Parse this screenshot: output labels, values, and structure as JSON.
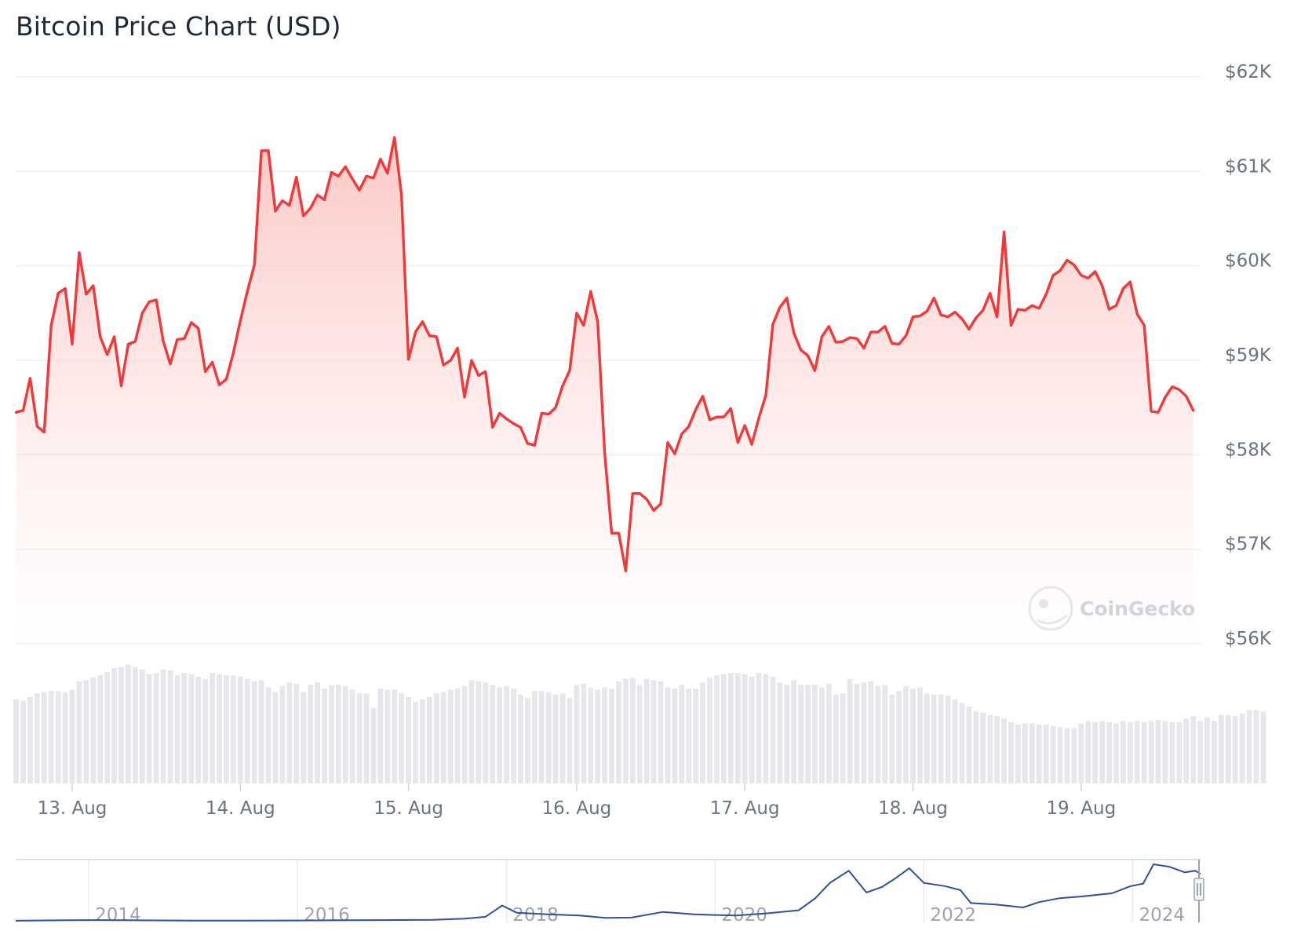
{
  "title": "Bitcoin Price Chart (USD)",
  "watermark": "CoinGecko",
  "colors": {
    "price_line": "#f23838",
    "area_top": "#fbc5c2",
    "volume_bar": "#e5e7eb",
    "grid": "#eef0f3",
    "navigator_line": "#2f4fa2",
    "navigator_border": "#d1d5db"
  },
  "chart_data": [
    {
      "type": "area",
      "title": "Bitcoin Price Chart (USD)",
      "xlabel": "",
      "ylabel": "",
      "y_tick_labels": [
        "$56K",
        "$57K",
        "$58K",
        "$59K",
        "$60K",
        "$61K",
        "$62K"
      ],
      "y_ticks": [
        56000,
        57000,
        58000,
        59000,
        60000,
        61000,
        62000
      ],
      "ylim": [
        56000,
        62000
      ],
      "x_tick_labels": [
        "13. Aug",
        "14. Aug",
        "15. Aug",
        "16. Aug",
        "17. Aug",
        "18. Aug",
        "19. Aug"
      ],
      "x_ticks": [
        "2024-08-13",
        "2024-08-14",
        "2024-08-15",
        "2024-08-16",
        "2024-08-17",
        "2024-08-18",
        "2024-08-19"
      ],
      "x_range": [
        "2024-08-12 16:00",
        "2024-08-19 17:00"
      ],
      "sample_interval": "1h",
      "grid": true,
      "legend": "none",
      "series": [
        {
          "values": [
            58450,
            58470,
            58810,
            58300,
            58240,
            59370,
            59710,
            59760,
            59170,
            60140,
            59700,
            59790,
            59250,
            59060,
            59250,
            58730,
            59170,
            59200,
            59500,
            59620,
            59640,
            59200,
            58960,
            59220,
            59230,
            59400,
            59340,
            58880,
            58980,
            58740,
            58800,
            59080,
            59420,
            59730,
            60010,
            61220,
            61220,
            60580,
            60690,
            60640,
            60940,
            60530,
            60610,
            60750,
            60700,
            60990,
            60950,
            61050,
            60920,
            60800,
            60950,
            60930,
            61130,
            60980,
            61360,
            60750,
            59010,
            59300,
            59410,
            59260,
            59250,
            58950,
            59000,
            59130,
            58610,
            59000,
            58840,
            58880,
            58290,
            58440,
            58380,
            58330,
            58290,
            58120,
            58100,
            58440,
            58430,
            58500,
            58730,
            58890,
            59500,
            59370,
            59730,
            59410,
            58020,
            57170,
            57170,
            56770,
            57590,
            57590,
            57530,
            57410,
            57480,
            58130,
            58010,
            58220,
            58300,
            58480,
            58620,
            58370,
            58400,
            58400,
            58490,
            58130,
            58310,
            58110,
            58390,
            58630,
            59380,
            59560,
            59660,
            59290,
            59110,
            59050,
            58890,
            59250,
            59360,
            59190,
            59200,
            59240,
            59230,
            59130,
            59300,
            59300,
            59360,
            59180,
            59170,
            59260,
            59460,
            59470,
            59520,
            59660,
            59480,
            59460,
            59510,
            59440,
            59330,
            59450,
            59530,
            59710,
            59460,
            60360,
            59370,
            59540,
            59530,
            59580,
            59550,
            59700,
            59900,
            59950,
            60060,
            60010,
            59900,
            59870,
            59940,
            59790,
            59540,
            59580,
            59760,
            59830,
            59490,
            59370,
            58460,
            58450,
            58610,
            58720,
            58690,
            58620,
            58470
          ]
        }
      ]
    },
    {
      "type": "bar",
      "title": "",
      "xlabel": "",
      "ylabel": "",
      "series": [
        {
          "values": [
            70,
            69,
            72,
            75,
            76,
            77,
            77,
            76,
            78,
            85,
            86,
            88,
            90,
            93,
            96,
            97,
            99,
            97,
            95,
            91,
            92,
            95,
            94,
            90,
            92,
            91,
            89,
            87,
            92,
            91,
            90,
            90,
            89,
            87,
            85,
            86,
            80,
            76,
            81,
            84,
            83,
            76,
            82,
            84,
            79,
            82,
            82,
            81,
            78,
            75,
            75,
            63,
            79,
            78,
            78,
            75,
            72,
            68,
            70,
            72,
            75,
            76,
            78,
            79,
            81,
            86,
            85,
            84,
            82,
            80,
            81,
            79,
            74,
            71,
            77,
            77,
            76,
            74,
            75,
            71,
            82,
            83,
            80,
            78,
            80,
            79,
            85,
            87,
            88,
            82,
            87,
            86,
            85,
            80,
            79,
            82,
            79,
            79,
            84,
            88,
            90,
            91,
            92,
            92,
            91,
            89,
            92,
            91,
            89,
            84,
            82,
            86,
            82,
            82,
            82,
            80,
            83,
            74,
            75,
            87,
            83,
            84,
            85,
            81,
            82,
            74,
            77,
            81,
            79,
            80,
            75,
            74,
            74,
            73,
            70,
            67,
            64,
            60,
            59,
            57,
            56,
            54,
            51,
            49,
            50,
            50,
            49,
            49,
            48,
            47,
            46,
            46,
            50,
            52,
            51,
            52,
            51,
            50,
            52,
            51,
            52,
            51,
            52,
            53,
            52,
            51,
            51,
            54,
            56,
            52,
            55,
            52,
            57,
            57,
            56,
            58,
            61,
            61,
            60
          ]
        }
      ]
    },
    {
      "type": "line",
      "title": "",
      "xlabel": "",
      "ylabel": "",
      "x_tick_labels": [
        "2014",
        "2016",
        "2018",
        "2020",
        "2022",
        "2024"
      ],
      "x_ticks": [
        2014,
        2016,
        2018,
        2020,
        2022,
        2024
      ],
      "x_range": [
        2013.3,
        2024.65
      ],
      "series": [
        {
          "x": [
            2013.3,
            2013.8,
            2014.0,
            2014.5,
            2015.0,
            2015.5,
            2016.0,
            2016.5,
            2017.0,
            2017.3,
            2017.6,
            2017.8,
            2017.96,
            2018.1,
            2018.4,
            2018.7,
            2018.95,
            2019.2,
            2019.5,
            2019.8,
            2020.0,
            2020.2,
            2020.5,
            2020.8,
            2020.96,
            2021.1,
            2021.28,
            2021.45,
            2021.6,
            2021.72,
            2021.86,
            2022.0,
            2022.2,
            2022.35,
            2022.45,
            2022.7,
            2022.95,
            2023.1,
            2023.3,
            2023.5,
            2023.8,
            2023.98,
            2024.1,
            2024.2,
            2024.35,
            2024.5,
            2024.6,
            2024.65
          ],
          "values": [
            120,
            650,
            850,
            600,
            250,
            260,
            420,
            650,
            1000,
            1200,
            2700,
            5000,
            19000,
            10000,
            8000,
            6500,
            3600,
            4000,
            11000,
            8000,
            7200,
            6500,
            9200,
            13000,
            28000,
            47000,
            62000,
            35000,
            42000,
            52000,
            65000,
            47000,
            43000,
            38000,
            22000,
            20000,
            16500,
            23000,
            28000,
            30000,
            34000,
            43000,
            46000,
            70000,
            67000,
            60000,
            62000,
            58000
          ]
        }
      ]
    }
  ]
}
